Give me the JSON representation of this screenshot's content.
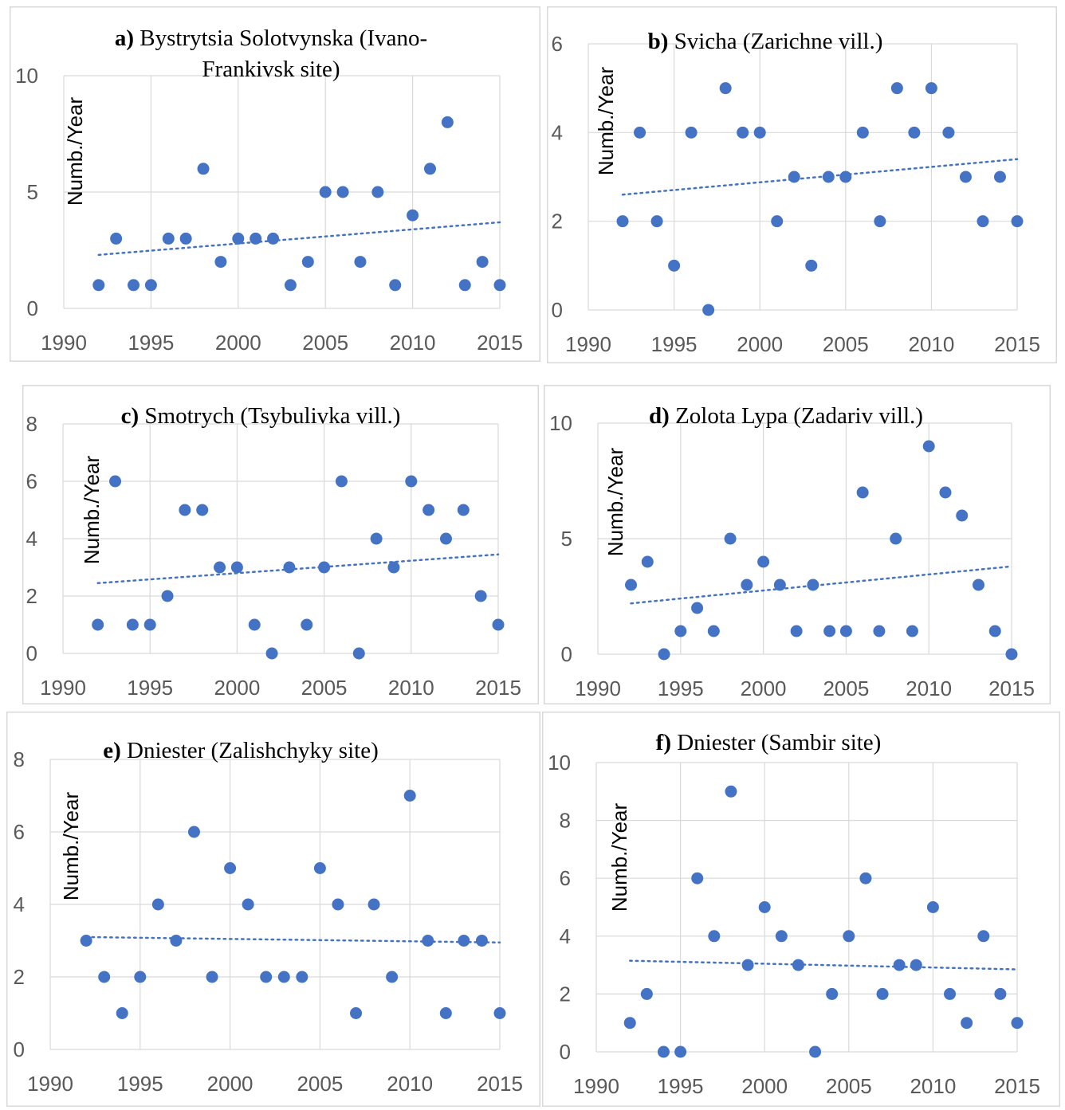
{
  "chart_data": [
    {
      "type": "scatter",
      "panel_label": "a)",
      "title_lines": [
        "Bystrytsia Solotvynska (Ivano-",
        "Frankivsk site)"
      ],
      "ylabel": "Numb./Year",
      "xlim": [
        1990,
        2015
      ],
      "ylim": [
        0,
        10
      ],
      "xticks": [
        1990,
        1995,
        2000,
        2005,
        2010,
        2015
      ],
      "yticks": [
        0,
        5,
        10
      ],
      "x": [
        1992,
        1993,
        1994,
        1995,
        1996,
        1997,
        1998,
        1999,
        2000,
        2001,
        2002,
        2003,
        2004,
        2005,
        2006,
        2007,
        2008,
        2009,
        2010,
        2011,
        2012,
        2013,
        2014,
        2015
      ],
      "y": [
        1,
        3,
        1,
        1,
        3,
        3,
        6,
        2,
        3,
        3,
        3,
        1,
        2,
        5,
        5,
        2,
        5,
        1,
        4,
        6,
        8,
        1,
        2,
        1
      ],
      "trend": {
        "x": [
          1992,
          2015
        ],
        "y": [
          2.3,
          3.7
        ]
      },
      "color": "#4472c4"
    },
    {
      "type": "scatter",
      "panel_label": "b)",
      "title_lines": [
        "Svicha (Zarichne vill.)"
      ],
      "ylabel": "Numb./Year",
      "xlim": [
        1990,
        2015
      ],
      "ylim": [
        0,
        6
      ],
      "xticks": [
        1990,
        1995,
        2000,
        2005,
        2010,
        2015
      ],
      "yticks": [
        0,
        2,
        4,
        6
      ],
      "x": [
        1992,
        1993,
        1994,
        1995,
        1996,
        1997,
        1998,
        1999,
        2000,
        2001,
        2002,
        2003,
        2004,
        2005,
        2006,
        2007,
        2008,
        2009,
        2010,
        2011,
        2012,
        2013,
        2014,
        2015
      ],
      "y": [
        2,
        4,
        2,
        1,
        4,
        0,
        5,
        4,
        4,
        2,
        3,
        1,
        3,
        3,
        4,
        2,
        5,
        4,
        5,
        4,
        3,
        2,
        3,
        2
      ],
      "trend": {
        "x": [
          1992,
          2015
        ],
        "y": [
          2.6,
          3.4
        ]
      },
      "color": "#4472c4"
    },
    {
      "type": "scatter",
      "panel_label": "c)",
      "title_lines": [
        "Smotrych (Tsybulivka vill.)"
      ],
      "ylabel": "Numb./Year",
      "xlim": [
        1990,
        2015
      ],
      "ylim": [
        0,
        8
      ],
      "xticks": [
        1990,
        1995,
        2000,
        2005,
        2010,
        2015
      ],
      "yticks": [
        0,
        2,
        4,
        6,
        8
      ],
      "x": [
        1992,
        1993,
        1994,
        1995,
        1996,
        1997,
        1998,
        1999,
        2000,
        2001,
        2002,
        2003,
        2004,
        2005,
        2006,
        2007,
        2008,
        2009,
        2010,
        2011,
        2012,
        2013,
        2014,
        2015
      ],
      "y": [
        1,
        6,
        1,
        1,
        2,
        5,
        5,
        3,
        3,
        1,
        0,
        3,
        1,
        3,
        6,
        0,
        4,
        3,
        6,
        5,
        4,
        5,
        2,
        1
      ],
      "trend": {
        "x": [
          1992,
          2015
        ],
        "y": [
          2.45,
          3.45
        ]
      },
      "color": "#4472c4"
    },
    {
      "type": "scatter",
      "panel_label": "d)",
      "title_lines": [
        "Zolota Lypa (Zadariv vill.)"
      ],
      "ylabel": "Numb./Year",
      "xlim": [
        1990,
        2015
      ],
      "ylim": [
        0,
        10
      ],
      "xticks": [
        1990,
        1995,
        2000,
        2005,
        2010,
        2015
      ],
      "yticks": [
        0,
        5,
        10
      ],
      "x": [
        1992,
        1993,
        1994,
        1995,
        1996,
        1997,
        1998,
        1999,
        2000,
        2001,
        2002,
        2003,
        2004,
        2005,
        2006,
        2007,
        2008,
        2009,
        2010,
        2011,
        2012,
        2013,
        2014,
        2015
      ],
      "y": [
        3,
        4,
        0,
        1,
        2,
        1,
        5,
        3,
        4,
        3,
        1,
        3,
        1,
        1,
        7,
        1,
        5,
        1,
        9,
        7,
        6,
        3,
        1,
        0
      ],
      "trend": {
        "x": [
          1992,
          2015
        ],
        "y": [
          2.2,
          3.8
        ]
      },
      "color": "#4472c4"
    },
    {
      "type": "scatter",
      "panel_label": "e)",
      "title_lines": [
        "Dniester (Zalishchyky site)"
      ],
      "ylabel": "Numb./Year",
      "xlim": [
        1990,
        2015
      ],
      "ylim": [
        0,
        8
      ],
      "xticks": [
        1990,
        1995,
        2000,
        2005,
        2010,
        2015
      ],
      "yticks": [
        0,
        2,
        4,
        6,
        8
      ],
      "x": [
        1992,
        1993,
        1994,
        1995,
        1996,
        1997,
        1998,
        1999,
        2000,
        2001,
        2002,
        2003,
        2004,
        2005,
        2006,
        2007,
        2008,
        2009,
        2010,
        2011,
        2012,
        2013,
        2014,
        2015
      ],
      "y": [
        3,
        2,
        1,
        2,
        4,
        3,
        6,
        2,
        5,
        4,
        2,
        2,
        2,
        5,
        4,
        1,
        4,
        2,
        7,
        3,
        1,
        3,
        3,
        1
      ],
      "trend": {
        "x": [
          1992,
          2015
        ],
        "y": [
          3.1,
          2.95
        ]
      },
      "color": "#4472c4"
    },
    {
      "type": "scatter",
      "panel_label": "f)",
      "title_lines": [
        "Dniester (Sambir site)"
      ],
      "ylabel": "Numb./Year",
      "xlim": [
        1990,
        2015
      ],
      "ylim": [
        0,
        10
      ],
      "xticks": [
        1990,
        1995,
        2000,
        2005,
        2010,
        2015
      ],
      "yticks": [
        0,
        2,
        4,
        6,
        8,
        10
      ],
      "x": [
        1992,
        1993,
        1994,
        1995,
        1996,
        1997,
        1998,
        1999,
        2000,
        2001,
        2002,
        2003,
        2004,
        2005,
        2006,
        2007,
        2008,
        2009,
        2010,
        2011,
        2012,
        2013,
        2014,
        2015
      ],
      "y": [
        1,
        2,
        0,
        0,
        6,
        4,
        9,
        3,
        5,
        4,
        3,
        0,
        2,
        4,
        6,
        2,
        3,
        3,
        5,
        2,
        1,
        4,
        2,
        1
      ],
      "trend": {
        "x": [
          1992,
          2015
        ],
        "y": [
          3.15,
          2.85
        ]
      },
      "color": "#4472c4"
    }
  ]
}
